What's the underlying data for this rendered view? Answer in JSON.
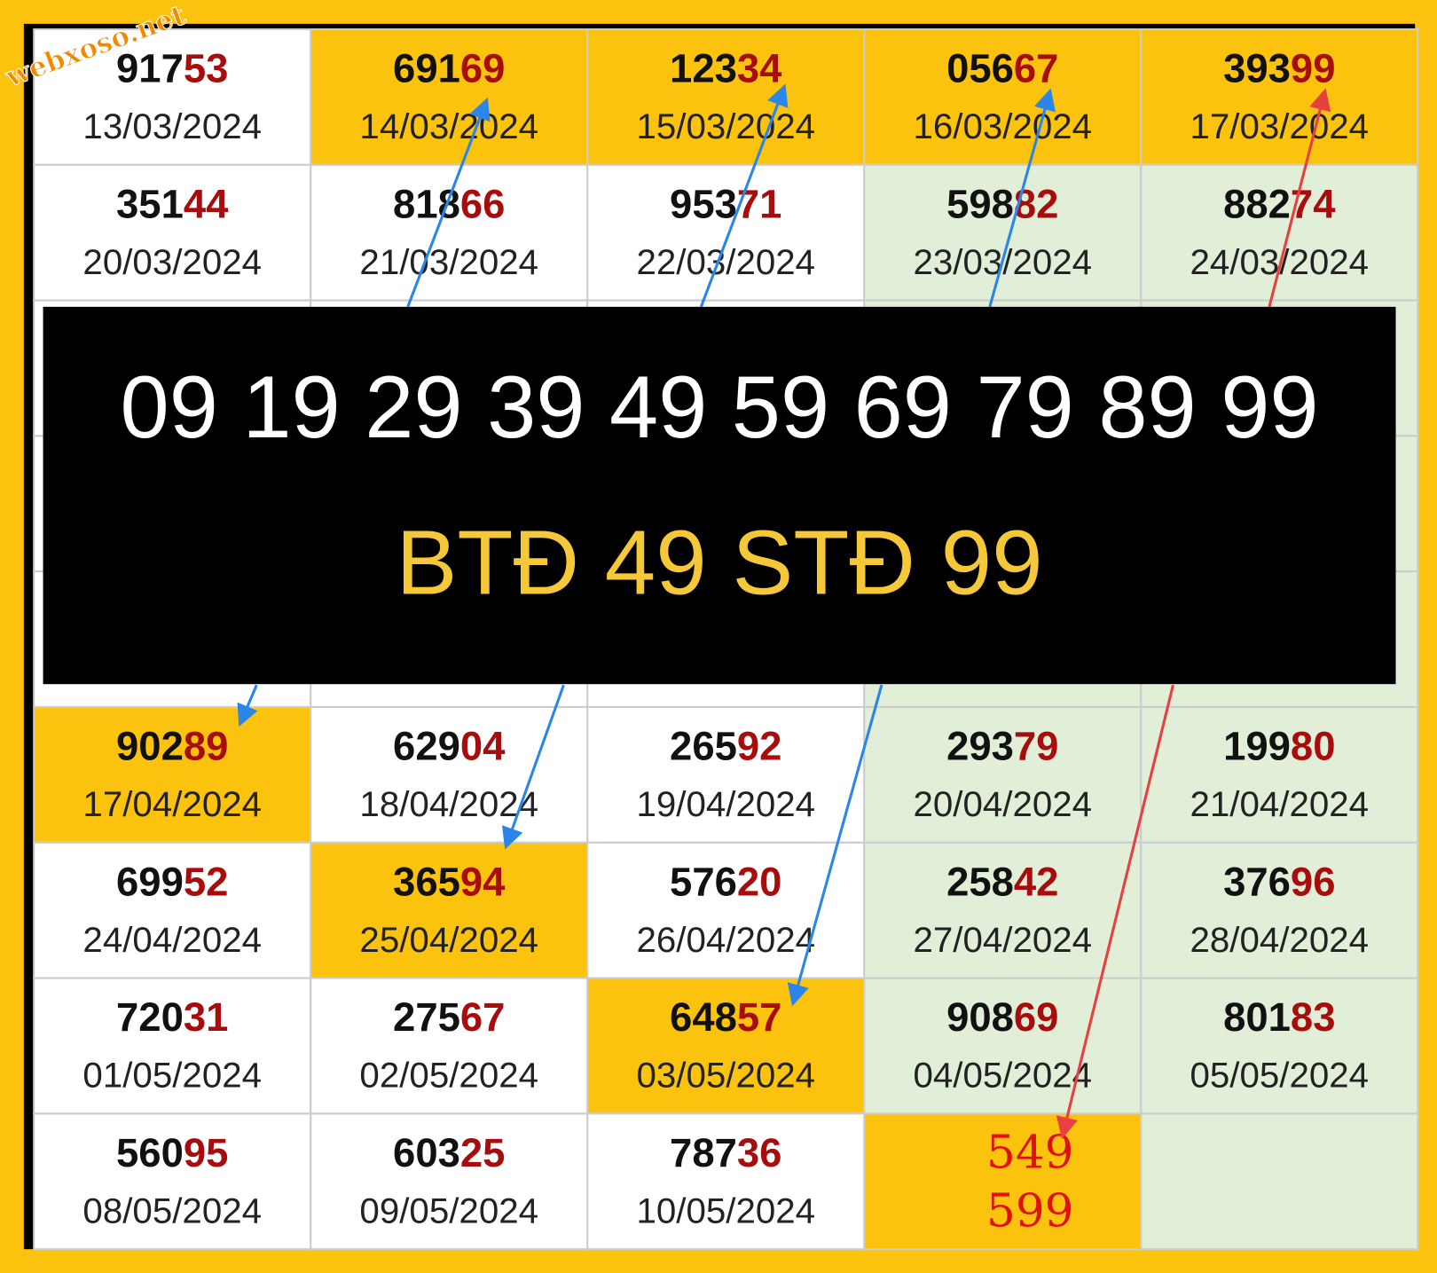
{
  "watermark": "webxoso.net",
  "table": {
    "top_rows": [
      [
        {
          "prefix": "917",
          "suffix": "53",
          "date": "13/03/2024",
          "bg": "white"
        },
        {
          "prefix": "691",
          "suffix": "69",
          "date": "14/03/2024",
          "bg": "yellow"
        },
        {
          "prefix": "123",
          "suffix": "34",
          "date": "15/03/2024",
          "bg": "yellow"
        },
        {
          "prefix": "056",
          "suffix": "67",
          "date": "16/03/2024",
          "bg": "yellow"
        },
        {
          "prefix": "393",
          "suffix": "99",
          "date": "17/03/2024",
          "bg": "yellow"
        }
      ],
      [
        {
          "prefix": "351",
          "suffix": "44",
          "date": "20/03/2024",
          "bg": "white"
        },
        {
          "prefix": "818",
          "suffix": "66",
          "date": "21/03/2024",
          "bg": "white"
        },
        {
          "prefix": "953",
          "suffix": "71",
          "date": "22/03/2024",
          "bg": "white"
        },
        {
          "prefix": "598",
          "suffix": "82",
          "date": "23/03/2024",
          "bg": "green"
        },
        {
          "prefix": "882",
          "suffix": "74",
          "date": "24/03/2024",
          "bg": "green"
        }
      ]
    ],
    "bottom_rows": [
      [
        {
          "prefix": "902",
          "suffix": "89",
          "date": "17/04/2024",
          "bg": "yellow"
        },
        {
          "prefix": "629",
          "suffix": "04",
          "date": "18/04/2024",
          "bg": "white"
        },
        {
          "prefix": "265",
          "suffix": "92",
          "date": "19/04/2024",
          "bg": "white"
        },
        {
          "prefix": "293",
          "suffix": "79",
          "date": "20/04/2024",
          "bg": "green"
        },
        {
          "prefix": "199",
          "suffix": "80",
          "date": "21/04/2024",
          "bg": "green"
        }
      ],
      [
        {
          "prefix": "699",
          "suffix": "52",
          "date": "24/04/2024",
          "bg": "white"
        },
        {
          "prefix": "365",
          "suffix": "94",
          "date": "25/04/2024",
          "bg": "yellow"
        },
        {
          "prefix": "576",
          "suffix": "20",
          "date": "26/04/2024",
          "bg": "white"
        },
        {
          "prefix": "258",
          "suffix": "42",
          "date": "27/04/2024",
          "bg": "green"
        },
        {
          "prefix": "376",
          "suffix": "96",
          "date": "28/04/2024",
          "bg": "green"
        }
      ],
      [
        {
          "prefix": "720",
          "suffix": "31",
          "date": "01/05/2024",
          "bg": "white"
        },
        {
          "prefix": "275",
          "suffix": "67",
          "date": "02/05/2024",
          "bg": "white"
        },
        {
          "prefix": "648",
          "suffix": "57",
          "date": "03/05/2024",
          "bg": "yellow"
        },
        {
          "prefix": "908",
          "suffix": "69",
          "date": "04/05/2024",
          "bg": "green"
        },
        {
          "prefix": "801",
          "suffix": "83",
          "date": "05/05/2024",
          "bg": "green"
        }
      ],
      [
        {
          "prefix": "560",
          "suffix": "95",
          "date": "08/05/2024",
          "bg": "white"
        },
        {
          "prefix": "603",
          "suffix": "25",
          "date": "09/05/2024",
          "bg": "white"
        },
        {
          "prefix": "787",
          "suffix": "36",
          "date": "10/05/2024",
          "bg": "white"
        },
        {
          "lines": [
            "549",
            "599"
          ],
          "bg": "yellow"
        },
        {
          "bg": "green"
        }
      ]
    ]
  },
  "banner": {
    "numbers": "09 19 29 39 49 59 69 79 89 99",
    "prediction": "BTĐ 49 STĐ 99"
  }
}
